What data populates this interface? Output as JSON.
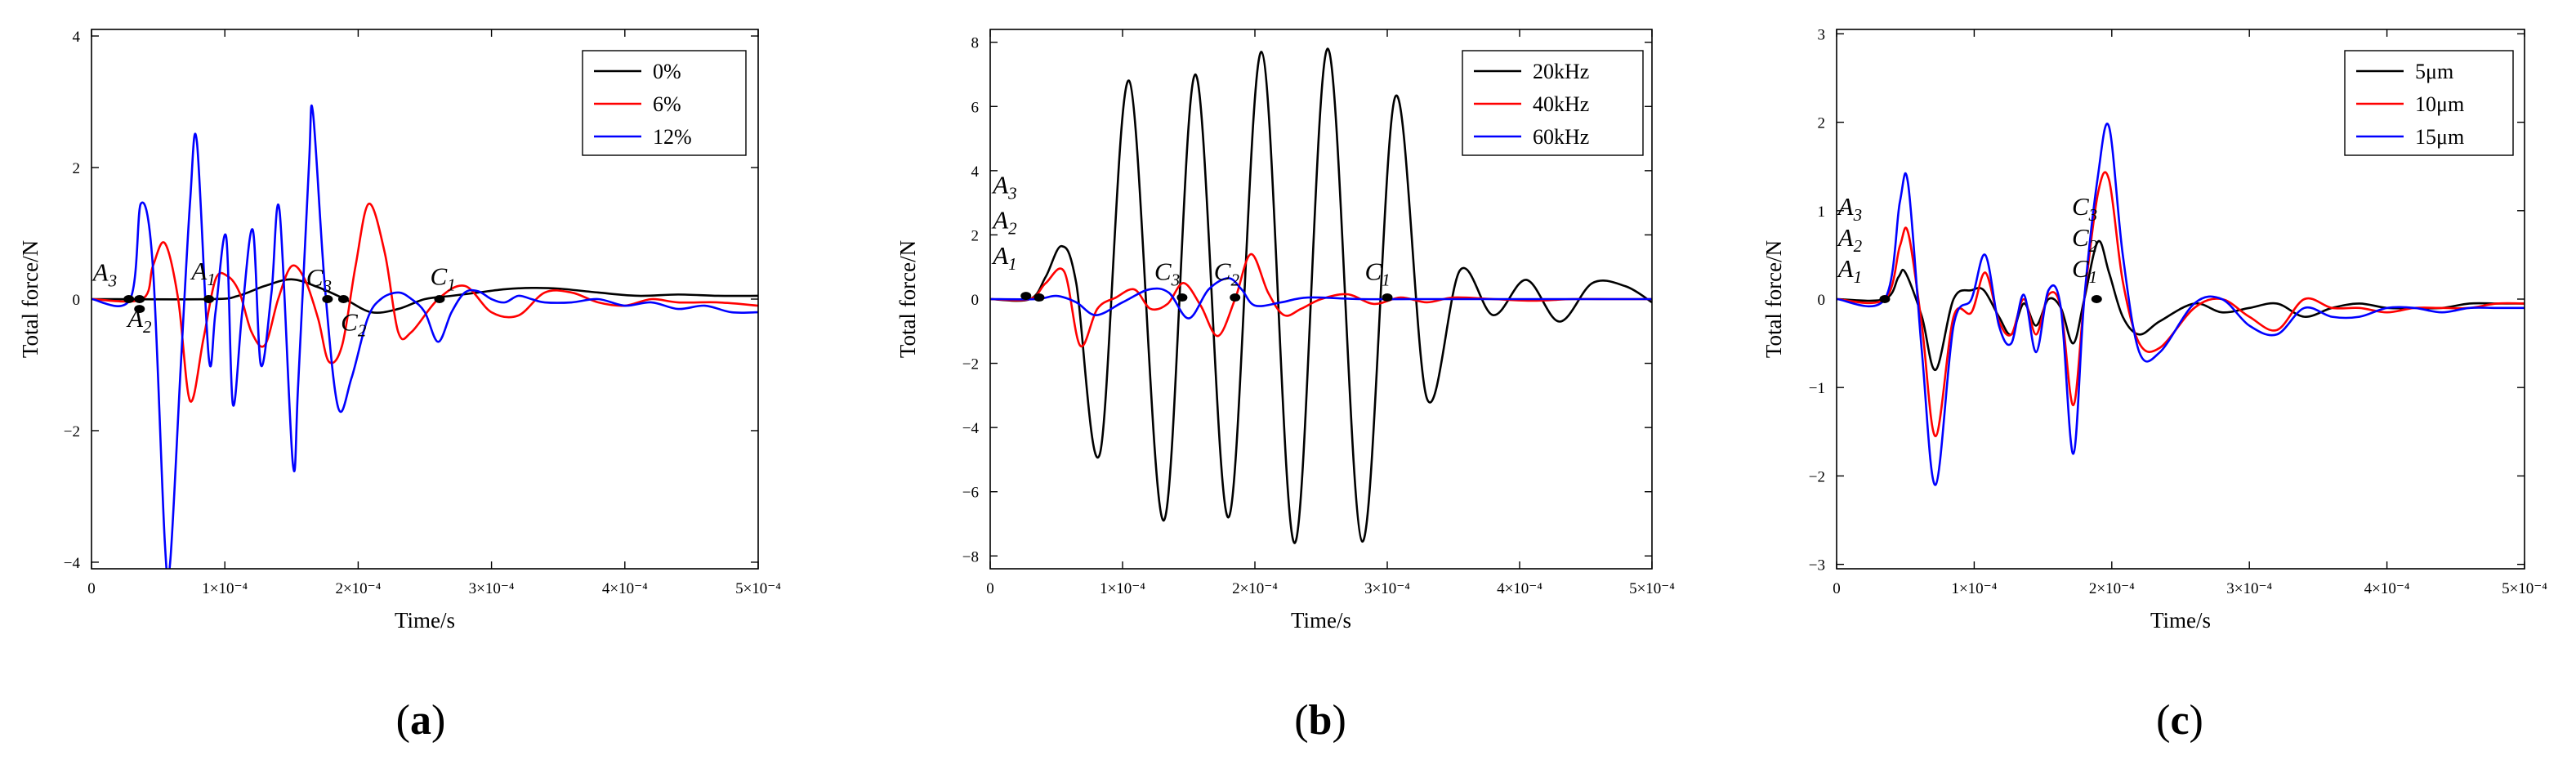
{
  "chart_data": [
    {
      "type": "line",
      "panel_label": "a",
      "xlabel": "Time/s",
      "ylabel": "Total force/N",
      "xlim": [
        0,
        0.0005
      ],
      "ylim": [
        -4.1,
        4.1
      ],
      "xticks": [
        {
          "value": 0,
          "label": "0"
        },
        {
          "value": 0.0001,
          "label": "1×10⁻⁴"
        },
        {
          "value": 0.0002,
          "label": "2×10⁻⁴"
        },
        {
          "value": 0.0003,
          "label": "3×10⁻⁴"
        },
        {
          "value": 0.0004,
          "label": "4×10⁻⁴"
        },
        {
          "value": 0.0005,
          "label": "5×10⁻⁴"
        }
      ],
      "yticks": [
        {
          "value": -4,
          "label": "−4"
        },
        {
          "value": -2,
          "label": "−2"
        },
        {
          "value": 0,
          "label": "0"
        },
        {
          "value": 2,
          "label": "2"
        },
        {
          "value": 4,
          "label": "4"
        }
      ],
      "legend_position": "top-right",
      "series": [
        {
          "name": "0%",
          "color": "#000000",
          "x": [
            0,
            9e-05,
            0.00011,
            0.00013,
            0.00015,
            0.00017,
            0.00019,
            0.00021,
            0.00023,
            0.00025,
            0.00027,
            0.00029,
            0.00031,
            0.00033,
            0.00035,
            0.00038,
            0.00041,
            0.00044,
            0.00047,
            0.0005
          ],
          "y": [
            0,
            0,
            0.05,
            0.2,
            0.3,
            0.18,
            0,
            -0.2,
            -0.15,
            0,
            0.05,
            0.1,
            0.15,
            0.17,
            0.16,
            0.1,
            0.05,
            0.07,
            0.05,
            0.05
          ]
        },
        {
          "name": "6%",
          "color": "#ff0000",
          "x": [
            0,
            3.8e-05,
            4.6e-05,
            5.5e-05,
            6.5e-05,
            7.4e-05,
            8.4e-05,
            9.3e-05,
            0.000102,
            0.000111,
            0.00012,
            0.00013,
            0.00014,
            0.00015,
            0.00016,
            0.00017,
            0.000178,
            0.000188,
            0.000198,
            0.000208,
            0.00022,
            0.00023,
            0.00024,
            0.00026,
            0.00028,
            0.0003,
            0.00032,
            0.00034,
            0.00036,
            0.00038,
            0.0004,
            0.00042,
            0.00044,
            0.00047,
            0.0005
          ],
          "y": [
            0,
            0,
            0.5,
            0.85,
            0,
            -1.55,
            -0.6,
            0.3,
            0.35,
            0.1,
            -0.5,
            -0.7,
            0,
            0.5,
            0.3,
            -0.3,
            -0.95,
            -0.7,
            0.5,
            1.45,
            0.7,
            -0.5,
            -0.5,
            0,
            0.2,
            -0.2,
            -0.25,
            0.1,
            0.1,
            -0.05,
            -0.1,
            0,
            -0.05,
            -0.05,
            -0.1
          ]
        },
        {
          "name": "12%",
          "color": "#0000ff",
          "x": [
            0,
            2.9e-05,
            3.7e-05,
            4.6e-05,
            5.5e-05,
            5.9e-05,
            6.7e-05,
            7.4e-05,
            7.9e-05,
            8.8e-05,
            9.3e-05,
            0.000101,
            0.000106,
            0.000113,
            0.000121,
            0.000127,
            0.000135,
            0.000141,
            0.000151,
            0.000155,
            0.000163,
            0.000166,
            0.000175,
            0.000185,
            0.000195,
            0.000207,
            0.000217,
            0.00023,
            0.00024,
            0.00025,
            0.00026,
            0.00027,
            0.00028,
            0.00029,
            0.0003,
            0.00031,
            0.00032,
            0.00033,
            0.00034,
            0.00036,
            0.00038,
            0.0004,
            0.00042,
            0.00044,
            0.00046,
            0.00048,
            0.0005
          ],
          "y": [
            0,
            0,
            1.45,
            0.5,
            -3.7,
            -4.0,
            -1.0,
            1.5,
            2.4,
            -0.9,
            -0.2,
            0.95,
            -1.6,
            -0.2,
            1.05,
            -1.0,
            0.1,
            1.35,
            -2.5,
            -1.3,
            2.0,
            2.85,
            0.2,
            -1.65,
            -1.2,
            -0.3,
            0,
            0.1,
            0,
            -0.2,
            -0.65,
            -0.2,
            0.1,
            0.12,
            0,
            -0.05,
            0.05,
            0,
            -0.05,
            -0.05,
            0,
            -0.1,
            -0.05,
            -0.15,
            -0.1,
            -0.2,
            -0.2
          ]
        }
      ],
      "markers": [
        {
          "x": 2.8e-05,
          "y": 0
        },
        {
          "x": 3.6e-05,
          "y": 0
        },
        {
          "x": 3.6e-05,
          "y": -0.15
        },
        {
          "x": 8.8e-05,
          "y": 0
        },
        {
          "x": 0.000177,
          "y": 0
        },
        {
          "x": 0.000189,
          "y": 0
        },
        {
          "x": 0.000261,
          "y": 0
        }
      ],
      "annotations": [
        {
          "base": "A",
          "sub": "3",
          "x": 1e-06,
          "y": 0.28
        },
        {
          "base": "A",
          "sub": "2",
          "x": 2.7e-05,
          "y": -0.42
        },
        {
          "base": "A",
          "sub": "1",
          "x": 7.5e-05,
          "y": 0.3
        },
        {
          "base": "C",
          "sub": "3",
          "x": 0.000161,
          "y": 0.2
        },
        {
          "base": "C",
          "sub": "2",
          "x": 0.000187,
          "y": -0.48
        },
        {
          "base": "C",
          "sub": "1",
          "x": 0.000254,
          "y": 0.22
        }
      ]
    },
    {
      "type": "line",
      "panel_label": "b",
      "xlabel": "Time/s",
      "ylabel": "Total force/N",
      "xlim": [
        0,
        0.0005
      ],
      "ylim": [
        -8.4,
        8.4
      ],
      "xticks": [
        {
          "value": 0,
          "label": "0"
        },
        {
          "value": 0.0001,
          "label": "1×10⁻⁴"
        },
        {
          "value": 0.0002,
          "label": "2×10⁻⁴"
        },
        {
          "value": 0.0003,
          "label": "3×10⁻⁴"
        },
        {
          "value": 0.0004,
          "label": "4×10⁻⁴"
        },
        {
          "value": 0.0005,
          "label": "5×10⁻⁴"
        }
      ],
      "yticks": [
        {
          "value": -8,
          "label": "−8"
        },
        {
          "value": -6,
          "label": "−6"
        },
        {
          "value": -4,
          "label": "−4"
        },
        {
          "value": -2,
          "label": "−2"
        },
        {
          "value": 0,
          "label": "0"
        },
        {
          "value": 2,
          "label": "2"
        },
        {
          "value": 4,
          "label": "4"
        },
        {
          "value": 6,
          "label": "6"
        },
        {
          "value": 8,
          "label": "8"
        }
      ],
      "legend_position": "top-right",
      "series": [
        {
          "name": "20kHz",
          "color": "#000000",
          "x": [
            0,
            3e-05,
            4.2e-05,
            5.4e-05,
            6.5e-05,
            8.3e-05,
            0.000105,
            0.000131,
            0.000155,
            0.00018,
            0.000205,
            0.00023,
            0.000255,
            0.000281,
            0.000306,
            0.00033,
            0.000355,
            0.00038,
            0.000405,
            0.00043,
            0.000455,
            0.00048,
            0.0005
          ],
          "y": [
            0,
            0,
            0.7,
            1.65,
            0.5,
            -4.8,
            6.8,
            -6.9,
            7.0,
            -6.8,
            7.7,
            -7.6,
            7.8,
            -7.55,
            6.3,
            -3.1,
            0.9,
            -0.5,
            0.6,
            -0.7,
            0.5,
            0.4,
            -0.1
          ]
        },
        {
          "name": "40kHz",
          "color": "#ff0000",
          "x": [
            0,
            3e-05,
            4.2e-05,
            5.6e-05,
            6.8e-05,
            8.1e-05,
            9.5e-05,
            0.000109,
            0.000121,
            0.000134,
            0.000146,
            0.000159,
            0.000172,
            0.000185,
            0.000197,
            0.00021,
            0.000222,
            0.000235,
            0.00025,
            0.00027,
            0.00029,
            0.00031,
            0.00033,
            0.00035,
            0.00038,
            0.00041,
            0.00044,
            0.00047,
            0.0005
          ],
          "y": [
            0,
            0,
            0.5,
            0.85,
            -1.45,
            -0.3,
            0.05,
            0.3,
            -0.3,
            -0.15,
            0.5,
            -0.2,
            -1.15,
            0,
            1.4,
            0.2,
            -0.5,
            -0.3,
            0,
            0.15,
            -0.15,
            0.05,
            -0.1,
            0.05,
            0,
            -0.05,
            0,
            0,
            0
          ]
        },
        {
          "name": "60kHz",
          "color": "#0000ff",
          "x": [
            0,
            3.5e-05,
            5e-05,
            6.5e-05,
            8e-05,
            0.0001,
            0.00012,
            0.000135,
            0.00015,
            0.000165,
            0.00018,
            0.00019,
            0.0002,
            0.00022,
            0.00024,
            0.00028,
            0.00032,
            0.00036,
            0.0004,
            0.00044,
            0.0005
          ],
          "y": [
            0,
            0,
            0.1,
            -0.1,
            -0.5,
            -0.1,
            0.3,
            0.2,
            -0.6,
            0.3,
            0.65,
            0.3,
            -0.2,
            -0.1,
            0.05,
            0,
            0,
            0,
            0,
            0,
            0
          ]
        }
      ],
      "markers": [
        {
          "x": 2.7e-05,
          "y": 0.1
        },
        {
          "x": 3.7e-05,
          "y": 0.05
        },
        {
          "x": 0.000145,
          "y": 0.05
        },
        {
          "x": 0.000185,
          "y": 0.05
        },
        {
          "x": 0.0003,
          "y": 0.05
        }
      ],
      "annotations": [
        {
          "base": "A",
          "sub": "3",
          "x": 2e-06,
          "y": 3.3
        },
        {
          "base": "A",
          "sub": "2",
          "x": 2e-06,
          "y": 2.2
        },
        {
          "base": "A",
          "sub": "1",
          "x": 2e-06,
          "y": 1.1
        },
        {
          "base": "C",
          "sub": "3",
          "x": 0.000124,
          "y": 0.6
        },
        {
          "base": "C",
          "sub": "2",
          "x": 0.000169,
          "y": 0.6
        },
        {
          "base": "C",
          "sub": "1",
          "x": 0.000283,
          "y": 0.6
        }
      ]
    },
    {
      "type": "line",
      "panel_label": "c",
      "xlabel": "Time/s",
      "ylabel": "Total force/N",
      "xlim": [
        0,
        0.0005
      ],
      "ylim": [
        -3.05,
        3.05
      ],
      "xticks": [
        {
          "value": 0,
          "label": "0"
        },
        {
          "value": 0.0001,
          "label": "1×10⁻⁴"
        },
        {
          "value": 0.0002,
          "label": "2×10⁻⁴"
        },
        {
          "value": 0.0003,
          "label": "3×10⁻⁴"
        },
        {
          "value": 0.0004,
          "label": "4×10⁻⁴"
        },
        {
          "value": 0.0005,
          "label": "5×10⁻⁴"
        }
      ],
      "yticks": [
        {
          "value": -3,
          "label": "−3"
        },
        {
          "value": -2,
          "label": "−2"
        },
        {
          "value": -1,
          "label": "−1"
        },
        {
          "value": 0,
          "label": "0"
        },
        {
          "value": 1,
          "label": "1"
        },
        {
          "value": 2,
          "label": "2"
        },
        {
          "value": 3,
          "label": "3"
        }
      ],
      "legend_position": "top-right",
      "series": [
        {
          "name": "5μm",
          "color": "#000000",
          "x": [
            0,
            3.5e-05,
            4.5e-05,
            5e-05,
            6.2e-05,
            7.2e-05,
            8.5e-05,
            9.8e-05,
            0.000107,
            0.000118,
            0.000127,
            0.000136,
            0.000145,
            0.000154,
            0.000163,
            0.000172,
            0.00018,
            0.00019,
            0.000198,
            0.000208,
            0.00022,
            0.000235,
            0.00026,
            0.00028,
            0.0003,
            0.00032,
            0.00034,
            0.00036,
            0.00038,
            0.0004,
            0.00042,
            0.00044,
            0.00046,
            0.00048,
            0.0005
          ],
          "y": [
            0,
            0,
            0.25,
            0.3,
            -0.2,
            -0.8,
            0,
            0.1,
            0.1,
            -0.2,
            -0.4,
            -0.05,
            -0.3,
            0,
            -0.1,
            -0.5,
            0,
            0.65,
            0.3,
            -0.2,
            -0.4,
            -0.25,
            -0.05,
            -0.15,
            -0.1,
            -0.05,
            -0.2,
            -0.1,
            -0.05,
            -0.1,
            -0.1,
            -0.1,
            -0.05,
            -0.05,
            -0.05
          ]
        },
        {
          "name": "10μm",
          "color": "#ff0000",
          "x": [
            0,
            3.5e-05,
            4.6e-05,
            5.2e-05,
            6.2e-05,
            7.2e-05,
            8.5e-05,
            9.8e-05,
            0.000108,
            0.000118,
            0.000127,
            0.000136,
            0.000145,
            0.000154,
            0.000163,
            0.000172,
            0.00018,
            0.00019,
            0.000198,
            0.000208,
            0.00022,
            0.000235,
            0.00026,
            0.00028,
            0.0003,
            0.00032,
            0.00034,
            0.00036,
            0.00038,
            0.0004,
            0.00042,
            0.00044,
            0.00046,
            0.00048,
            0.0005
          ],
          "y": [
            0,
            0,
            0.6,
            0.75,
            -0.3,
            -1.55,
            -0.2,
            -0.15,
            0.3,
            -0.25,
            -0.4,
            0,
            -0.4,
            0.05,
            -0.1,
            -1.2,
            0,
            1.2,
            1.35,
            0.2,
            -0.5,
            -0.55,
            -0.1,
            0,
            -0.2,
            -0.35,
            0,
            -0.1,
            -0.1,
            -0.15,
            -0.1,
            -0.1,
            -0.1,
            -0.05,
            -0.05
          ]
        },
        {
          "name": "15μm",
          "color": "#0000ff",
          "x": [
            0,
            3.5e-05,
            4.6e-05,
            5.2e-05,
            6.2e-05,
            7.2e-05,
            8.5e-05,
            9.8e-05,
            0.000108,
            0.000118,
            0.000127,
            0.000136,
            0.000145,
            0.000154,
            0.000163,
            0.000172,
            0.00018,
            0.00019,
            0.000198,
            0.000208,
            0.00022,
            0.000235,
            0.00026,
            0.00028,
            0.0003,
            0.00032,
            0.00034,
            0.00036,
            0.00038,
            0.0004,
            0.00042,
            0.00044,
            0.00046,
            0.00048,
            0.0005
          ],
          "y": [
            0,
            0,
            1.1,
            1.3,
            -0.6,
            -2.1,
            -0.3,
            0,
            0.5,
            -0.3,
            -0.5,
            0.05,
            -0.6,
            0.1,
            -0.1,
            -1.75,
            0,
            1.4,
            1.95,
            0.5,
            -0.6,
            -0.6,
            -0.05,
            0,
            -0.3,
            -0.4,
            -0.1,
            -0.2,
            -0.2,
            -0.1,
            -0.1,
            -0.15,
            -0.1,
            -0.1,
            -0.1
          ]
        }
      ],
      "markers": [
        {
          "x": 3.5e-05,
          "y": 0
        },
        {
          "x": 0.000189,
          "y": 0
        }
      ],
      "annotations": [
        {
          "base": "A",
          "sub": "3",
          "x": 1e-06,
          "y": 0.95
        },
        {
          "base": "A",
          "sub": "2",
          "x": 1e-06,
          "y": 0.6
        },
        {
          "base": "A",
          "sub": "1",
          "x": 1e-06,
          "y": 0.25
        },
        {
          "base": "C",
          "sub": "3",
          "x": 0.000171,
          "y": 0.95
        },
        {
          "base": "C",
          "sub": "2",
          "x": 0.000171,
          "y": 0.6
        },
        {
          "base": "C",
          "sub": "1",
          "x": 0.000171,
          "y": 0.25
        }
      ]
    }
  ]
}
